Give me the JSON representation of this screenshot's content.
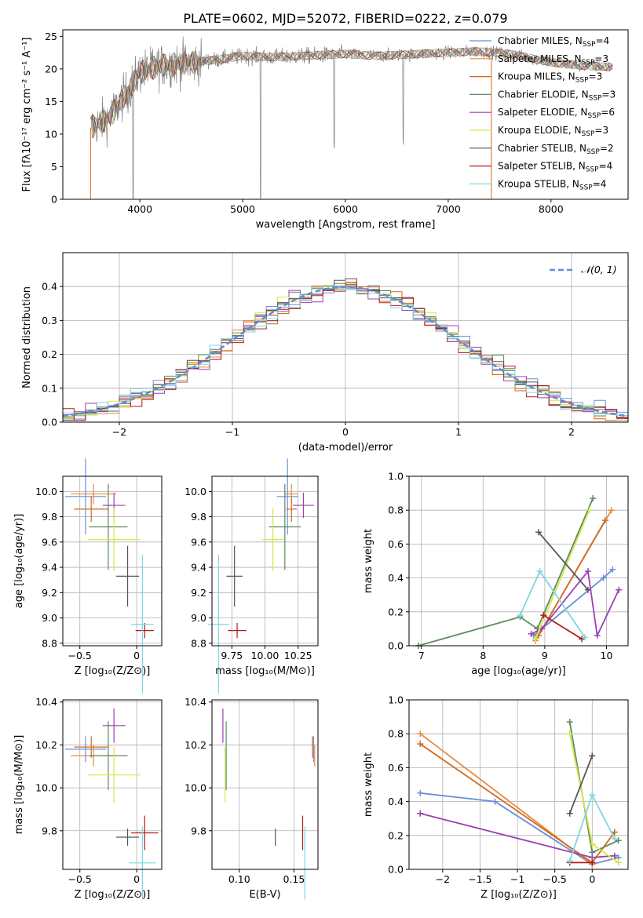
{
  "figure_title": "PLATE=0602, MJD=52072, FIBERID=0222, z=0.079",
  "colors": {
    "Chabrier MILES": "#6a8fd8",
    "Salpeter MILES": "#e88a3a",
    "Kroupa MILES": "#d2691e",
    "Chabrier ELODIE": "#5e8a5e",
    "Salpeter ELODIE": "#9c3fb5",
    "Kroupa ELODIE": "#d4e84a",
    "Chabrier STELIB": "#555555",
    "Salpeter STELIB": "#b31b1b",
    "Kroupa STELIB": "#7fd6e0",
    "data": "#808080",
    "normal": "#5b8ed6",
    "pink": "#e87fb0"
  },
  "chart_data": [
    {
      "id": "spectrum",
      "type": "line",
      "title": "PLATE=0602, MJD=52072, FIBERID=0222, z=0.079",
      "xlabel": "wavelength [Angstrom, rest frame]",
      "ylabel": "Flux [fλ10⁻¹⁷ erg cm⁻² s⁻¹ A⁻¹]",
      "xlim": [
        3250,
        8750
      ],
      "ylim": [
        0,
        26
      ],
      "xticks": [
        4000,
        5000,
        6000,
        7000,
        8000
      ],
      "yticks": [
        0,
        5,
        10,
        15,
        20,
        25
      ],
      "legend_position": "right",
      "legend": [
        {
          "label": "Chabrier MILES, N",
          "sub": "SSP",
          "suffix": "=4"
        },
        {
          "label": "Salpeter MILES, N",
          "sub": "SSP",
          "suffix": "=3"
        },
        {
          "label": "Kroupa MILES, N",
          "sub": "SSP",
          "suffix": "=3"
        },
        {
          "label": "Chabrier ELODIE, N",
          "sub": "SSP",
          "suffix": "=3"
        },
        {
          "label": "Salpeter ELODIE, N",
          "sub": "SSP",
          "suffix": "=6"
        },
        {
          "label": "Kroupa ELODIE, N",
          "sub": "SSP",
          "suffix": "=3"
        },
        {
          "label": "Chabrier STELIB, N",
          "sub": "SSP",
          "suffix": "=2"
        },
        {
          "label": "Salpeter STELIB, N",
          "sub": "SSP",
          "suffix": "=4"
        },
        {
          "label": "Kroupa STELIB, N",
          "sub": "SSP",
          "suffix": "=4"
        }
      ],
      "continuum": {
        "x": [
          3520,
          3700,
          3900,
          4000,
          4200,
          4500,
          4800,
          5000,
          5300,
          5600,
          6000,
          6300,
          6600,
          7000,
          7300,
          7600,
          8000,
          8300,
          8600
        ],
        "y": [
          11,
          12.5,
          17,
          19.5,
          20.5,
          21,
          21.5,
          22,
          21.8,
          22,
          22.3,
          22,
          22.2,
          22.5,
          22.7,
          22.3,
          21,
          20.5,
          20.3
        ]
      },
      "absorption_lines": [
        {
          "x": 3933,
          "depth": 19
        },
        {
          "x": 5175,
          "depth": 21
        },
        {
          "x": 5890,
          "depth": 15
        },
        {
          "x": 6563,
          "depth": 13
        }
      ]
    },
    {
      "id": "residuals",
      "type": "area",
      "xlabel": "(data-model)/error",
      "ylabel": "Normed distribution",
      "xlim": [
        -2.5,
        2.5
      ],
      "ylim": [
        0,
        0.5
      ],
      "xticks": [
        -2,
        -1,
        0,
        1,
        2
      ],
      "yticks": [
        0.0,
        0.1,
        0.2,
        0.3,
        0.4
      ],
      "legend": [
        "𝒩(0, 1)"
      ],
      "legend_position": "top-right",
      "bin_width": 0.1,
      "grid": true
    },
    {
      "id": "age_vs_Z",
      "type": "scatter",
      "xlabel": "Z [log₁₀(Z/Z⊙)]",
      "ylabel": "age  [log₁₀(age/yr)]",
      "xlim": [
        -0.65,
        0.22
      ],
      "ylim": [
        8.78,
        10.12
      ],
      "xticks": [
        -0.5,
        0.0
      ],
      "yticks": [
        8.8,
        9.0,
        9.2,
        9.4,
        9.6,
        9.8,
        10.0
      ],
      "points": [
        {
          "model": "Chabrier MILES",
          "x": -0.45,
          "y": 9.96,
          "xerr": 0.18,
          "yerr": 0.3
        },
        {
          "model": "Salpeter MILES",
          "x": -0.38,
          "y": 9.98,
          "xerr": 0.2,
          "yerr": 0.08
        },
        {
          "model": "Kroupa MILES",
          "x": -0.4,
          "y": 9.86,
          "xerr": 0.15,
          "yerr": 0.1
        },
        {
          "model": "Chabrier ELODIE",
          "x": -0.25,
          "y": 9.72,
          "xerr": 0.17,
          "yerr": 0.34
        },
        {
          "model": "Salpeter ELODIE",
          "x": -0.2,
          "y": 9.89,
          "xerr": 0.1,
          "yerr": 0.1
        },
        {
          "model": "Kroupa ELODIE",
          "x": -0.2,
          "y": 9.62,
          "xerr": 0.23,
          "yerr": 0.25
        },
        {
          "model": "Chabrier STELIB",
          "x": -0.08,
          "y": 9.33,
          "xerr": 0.1,
          "yerr": 0.24
        },
        {
          "model": "Salpeter STELIB",
          "x": 0.07,
          "y": 8.9,
          "xerr": 0.08,
          "yerr": 0.06
        },
        {
          "model": "Kroupa STELIB",
          "x": 0.05,
          "y": 8.95,
          "xerr": 0.1,
          "yerr": 0.55
        }
      ]
    },
    {
      "id": "age_vs_mass",
      "type": "scatter",
      "xlabel": "mass [log₁₀(M/M⊙)]",
      "xlim": [
        9.6,
        10.4
      ],
      "ylim": [
        8.78,
        10.12
      ],
      "xticks": [
        9.75,
        10.0,
        10.25
      ],
      "xticklabels": [
        "9.75",
        "10.00",
        "10.25"
      ],
      "yticks": [
        8.8,
        9.0,
        9.2,
        9.4,
        9.6,
        9.8,
        10.0
      ],
      "points": [
        {
          "model": "Chabrier MILES",
          "x": 10.17,
          "y": 9.96,
          "xerr": 0.08,
          "yerr": 0.3
        },
        {
          "model": "Salpeter MILES",
          "x": 10.2,
          "y": 9.98,
          "xerr": 0.05,
          "yerr": 0.08
        },
        {
          "model": "Kroupa MILES",
          "x": 10.2,
          "y": 9.86,
          "xerr": 0.04,
          "yerr": 0.1
        },
        {
          "model": "Chabrier ELODIE",
          "x": 10.15,
          "y": 9.72,
          "xerr": 0.12,
          "yerr": 0.34
        },
        {
          "model": "Salpeter ELODIE",
          "x": 10.29,
          "y": 9.89,
          "xerr": 0.08,
          "yerr": 0.1
        },
        {
          "model": "Kroupa ELODIE",
          "x": 10.06,
          "y": 9.62,
          "xerr": 0.08,
          "yerr": 0.25
        },
        {
          "model": "Chabrier STELIB",
          "x": 9.77,
          "y": 9.33,
          "xerr": 0.06,
          "yerr": 0.24
        },
        {
          "model": "Salpeter STELIB",
          "x": 9.79,
          "y": 8.9,
          "xerr": 0.07,
          "yerr": 0.06
        },
        {
          "model": "Kroupa STELIB",
          "x": 9.65,
          "y": 8.95,
          "xerr": 0.08,
          "yerr": 0.55
        }
      ]
    },
    {
      "id": "weight_vs_age",
      "type": "line",
      "xlabel": "age  [log₁₀(age/yr)]",
      "ylabel": "mass weight",
      "xlim": [
        6.8,
        10.35
      ],
      "ylim": [
        0,
        1
      ],
      "xticks": [
        7,
        8,
        9,
        10
      ],
      "yticks": [
        0.0,
        0.2,
        0.4,
        0.6,
        0.8,
        1.0
      ],
      "series": [
        {
          "model": "Chabrier MILES",
          "x": [
            8.82,
            9.95,
            10.1
          ],
          "y": [
            0.06,
            0.4,
            0.45
          ]
        },
        {
          "model": "Salpeter MILES",
          "x": [
            8.85,
            10.08
          ],
          "y": [
            0.03,
            0.8
          ]
        },
        {
          "model": "Kroupa MILES",
          "x": [
            8.9,
            9.98
          ],
          "y": [
            0.06,
            0.74
          ]
        },
        {
          "model": "Chabrier ELODIE",
          "x": [
            6.95,
            8.6,
            8.88,
            9.78
          ],
          "y": [
            0.0,
            0.17,
            0.1,
            0.87
          ]
        },
        {
          "model": "Salpeter ELODIE",
          "x": [
            8.78,
            8.95,
            9.7,
            9.85,
            10.2
          ],
          "y": [
            0.07,
            0.1,
            0.44,
            0.06,
            0.33
          ]
        },
        {
          "model": "Kroupa ELODIE",
          "x": [
            8.85,
            9.72
          ],
          "y": [
            0.04,
            0.8
          ]
        },
        {
          "model": "Chabrier STELIB",
          "x": [
            8.9,
            9.7
          ],
          "y": [
            0.67,
            0.33
          ]
        },
        {
          "model": "Salpeter STELIB",
          "x": [
            8.98,
            9.6
          ],
          "y": [
            0.18,
            0.04
          ]
        },
        {
          "model": "Kroupa STELIB",
          "x": [
            8.6,
            8.92,
            9.65
          ],
          "y": [
            0.18,
            0.44,
            0.05
          ]
        }
      ]
    },
    {
      "id": "mass_vs_Z",
      "type": "scatter",
      "xlabel": "Z [log₁₀(Z/Z⊙)]",
      "ylabel": "mass [log₁₀(M/M⊙)]",
      "xlim": [
        -0.65,
        0.22
      ],
      "ylim": [
        9.62,
        10.41
      ],
      "xticks": [
        -0.5,
        0.0
      ],
      "yticks": [
        9.8,
        10.0,
        10.2,
        10.4
      ],
      "points": [
        {
          "model": "Chabrier MILES",
          "x": -0.45,
          "y": 10.18,
          "xerr": 0.18,
          "yerr": 0.06
        },
        {
          "model": "Salpeter MILES",
          "x": -0.38,
          "y": 10.15,
          "xerr": 0.2,
          "yerr": 0.05
        },
        {
          "model": "Kroupa MILES",
          "x": -0.4,
          "y": 10.19,
          "xerr": 0.15,
          "yerr": 0.05
        },
        {
          "model": "Chabrier ELODIE",
          "x": -0.25,
          "y": 10.15,
          "xerr": 0.17,
          "yerr": 0.16
        },
        {
          "model": "Salpeter ELODIE",
          "x": -0.2,
          "y": 10.29,
          "xerr": 0.1,
          "yerr": 0.08
        },
        {
          "model": "Kroupa ELODIE",
          "x": -0.2,
          "y": 10.06,
          "xerr": 0.23,
          "yerr": 0.13
        },
        {
          "model": "Chabrier STELIB",
          "x": -0.08,
          "y": 9.77,
          "xerr": 0.1,
          "yerr": 0.04
        },
        {
          "model": "Salpeter STELIB",
          "x": 0.07,
          "y": 9.79,
          "xerr": 0.12,
          "yerr": 0.08
        },
        {
          "model": "Kroupa STELIB",
          "x": 0.05,
          "y": 9.65,
          "xerr": 0.12,
          "yerr": 0.17
        }
      ]
    },
    {
      "id": "mass_vs_ebv",
      "type": "scatter",
      "xlabel": "E(B-V)",
      "xlim": [
        0.075,
        0.172
      ],
      "ylim": [
        9.62,
        10.41
      ],
      "xticks": [
        0.1,
        0.15
      ],
      "xticklabels": [
        "0.10",
        "0.15"
      ],
      "yticks": [
        9.8,
        10.0,
        10.2,
        10.4
      ],
      "points": [
        {
          "model": "Chabrier MILES",
          "x": 0.168,
          "y": 10.18,
          "yerr": 0.06
        },
        {
          "model": "Salpeter MILES",
          "x": 0.169,
          "y": 10.15,
          "yerr": 0.05
        },
        {
          "model": "Kroupa MILES",
          "x": 0.167,
          "y": 10.19,
          "yerr": 0.05
        },
        {
          "model": "Chabrier ELODIE",
          "x": 0.088,
          "y": 10.15,
          "yerr": 0.16
        },
        {
          "model": "Salpeter ELODIE",
          "x": 0.085,
          "y": 10.29,
          "yerr": 0.08
        },
        {
          "model": "Kroupa ELODIE",
          "x": 0.087,
          "y": 10.06,
          "yerr": 0.13
        },
        {
          "model": "Chabrier STELIB",
          "x": 0.133,
          "y": 9.77,
          "yerr": 0.04
        },
        {
          "model": "Salpeter STELIB",
          "x": 0.158,
          "y": 9.79,
          "yerr": 0.08
        },
        {
          "model": "Kroupa STELIB",
          "x": 0.16,
          "y": 9.65,
          "yerr": 0.17
        }
      ]
    },
    {
      "id": "weight_vs_Z",
      "type": "line",
      "xlabel": "Z [log₁₀(Z/Z⊙)]",
      "ylabel": "mass weight",
      "xlim": [
        -2.45,
        0.48
      ],
      "ylim": [
        0,
        1
      ],
      "xticks": [
        -2.0,
        -1.5,
        -1.0,
        -0.5,
        0.0
      ],
      "yticks": [
        0.0,
        0.2,
        0.4,
        0.6,
        0.8,
        1.0
      ],
      "series": [
        {
          "model": "Chabrier MILES",
          "x": [
            -2.3,
            -1.3,
            0.0,
            0.35
          ],
          "y": [
            0.45,
            0.4,
            0.03,
            0.07
          ]
        },
        {
          "model": "Salpeter MILES",
          "x": [
            -2.3,
            0.0
          ],
          "y": [
            0.8,
            0.03
          ]
        },
        {
          "model": "Kroupa MILES",
          "x": [
            -2.3,
            0.0,
            0.3
          ],
          "y": [
            0.74,
            0.04,
            0.22
          ]
        },
        {
          "model": "Chabrier ELODIE",
          "x": [
            -0.3,
            0.0,
            0.35
          ],
          "y": [
            0.87,
            0.1,
            0.17
          ]
        },
        {
          "model": "Salpeter ELODIE",
          "x": [
            -2.3,
            0.0,
            0.3
          ],
          "y": [
            0.33,
            0.07,
            0.08
          ]
        },
        {
          "model": "Kroupa ELODIE",
          "x": [
            -0.3,
            0.0,
            0.35
          ],
          "y": [
            0.8,
            0.15,
            0.04
          ]
        },
        {
          "model": "Chabrier STELIB",
          "x": [
            -0.3,
            0.0
          ],
          "y": [
            0.33,
            0.67
          ]
        },
        {
          "model": "Salpeter STELIB",
          "x": [
            -0.3,
            0.0
          ],
          "y": [
            0.04,
            0.04
          ]
        },
        {
          "model": "Kroupa STELIB",
          "x": [
            -0.3,
            0.0,
            0.3
          ],
          "y": [
            0.05,
            0.44,
            0.18
          ]
        }
      ]
    }
  ]
}
